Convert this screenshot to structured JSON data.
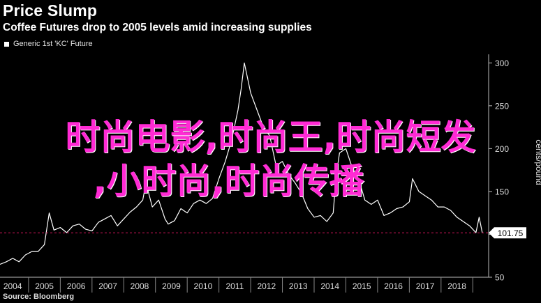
{
  "header": {
    "title": "Price Slump",
    "subtitle": "Coffee Futures drop to 2005 levels amid increasing supplies"
  },
  "legend": {
    "label": "Generic 1st 'KC' Future"
  },
  "source": "Source: Bloomberg",
  "watermark": {
    "line1": "时尚电影,时尚王,时尚短发",
    "line2": ",小时尚,时尚传播"
  },
  "colors": {
    "background": "#000000",
    "line": "#ffffff",
    "reference_line": "#d4145a",
    "watermark": "#ff2ad4"
  },
  "chart_data": {
    "type": "line",
    "title": "Price Slump",
    "subtitle": "Coffee Futures drop to 2005 levels amid increasing supplies",
    "ylabel": "cents/pound",
    "xlabel": "",
    "ylim": [
      50,
      310
    ],
    "yticks": [
      50,
      100,
      150,
      200,
      250,
      300
    ],
    "xlim": [
      2003.6,
      2019.0
    ],
    "xticks": [
      "2004",
      "2005",
      "2006",
      "2007",
      "2008",
      "2009",
      "2010",
      "2011",
      "2012",
      "2013",
      "2014",
      "2015",
      "2016",
      "2017",
      "2018"
    ],
    "last_value_label": "101.75",
    "reference_value": 101.75,
    "legend_position": "top-left",
    "grid": false,
    "series": [
      {
        "name": "Generic 1st 'KC' Future",
        "x": [
          2003.6,
          2003.8,
          2004.0,
          2004.2,
          2004.4,
          2004.6,
          2004.8,
          2005.0,
          2005.15,
          2005.3,
          2005.5,
          2005.7,
          2005.9,
          2006.1,
          2006.3,
          2006.5,
          2006.7,
          2006.9,
          2007.1,
          2007.3,
          2007.5,
          2007.7,
          2007.9,
          2008.1,
          2008.2,
          2008.4,
          2008.6,
          2008.8,
          2008.9,
          2009.1,
          2009.3,
          2009.5,
          2009.7,
          2009.9,
          2010.1,
          2010.3,
          2010.5,
          2010.7,
          2010.9,
          2011.1,
          2011.2,
          2011.3,
          2011.5,
          2011.7,
          2011.9,
          2012.1,
          2012.3,
          2012.5,
          2012.7,
          2012.9,
          2013.1,
          2013.3,
          2013.5,
          2013.7,
          2013.9,
          2014.1,
          2014.2,
          2014.3,
          2014.5,
          2014.7,
          2014.9,
          2015.1,
          2015.3,
          2015.5,
          2015.7,
          2015.9,
          2016.1,
          2016.3,
          2016.5,
          2016.6,
          2016.8,
          2017.0,
          2017.2,
          2017.4,
          2017.6,
          2017.8,
          2018.0,
          2018.2,
          2018.4,
          2018.6,
          2018.7,
          2018.8
        ],
        "y": [
          65,
          68,
          72,
          68,
          76,
          80,
          80,
          88,
          125,
          105,
          108,
          102,
          110,
          112,
          106,
          104,
          114,
          118,
          122,
          110,
          118,
          126,
          132,
          140,
          160,
          132,
          140,
          118,
          112,
          116,
          130,
          125,
          136,
          140,
          136,
          142,
          165,
          185,
          210,
          245,
          270,
          300,
          265,
          245,
          225,
          215,
          180,
          185,
          170,
          160,
          148,
          130,
          120,
          122,
          115,
          125,
          170,
          195,
          200,
          178,
          165,
          140,
          135,
          140,
          122,
          125,
          130,
          132,
          138,
          165,
          150,
          145,
          140,
          132,
          132,
          128,
          120,
          115,
          110,
          102,
          120,
          101.75
        ]
      }
    ]
  }
}
